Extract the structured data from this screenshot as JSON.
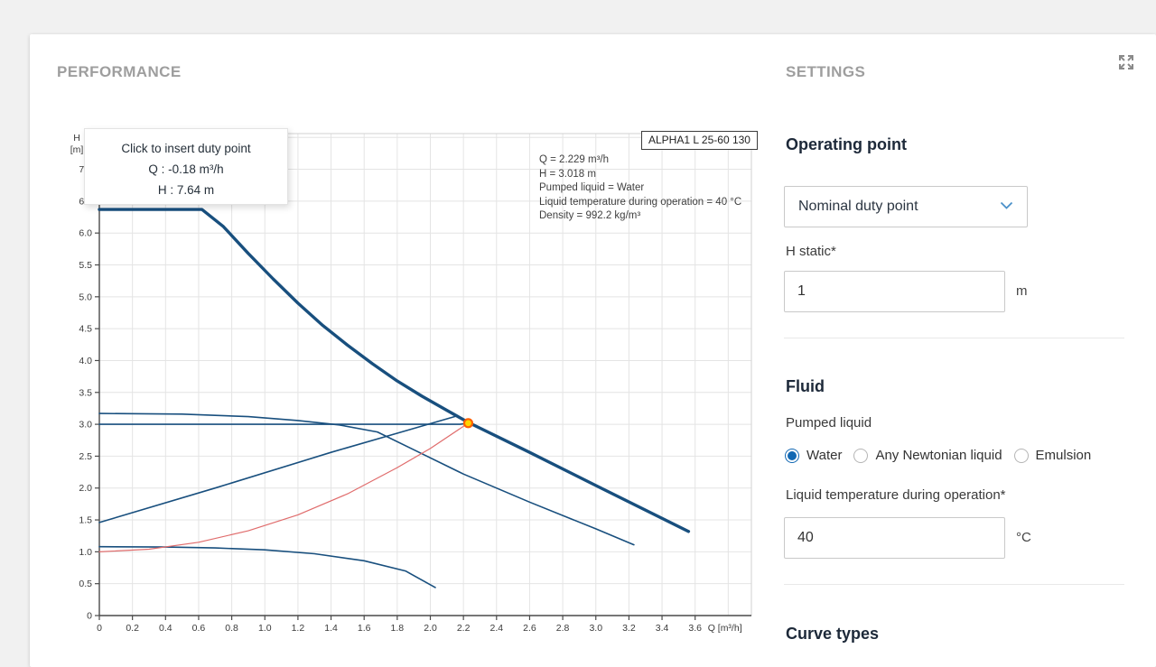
{
  "header": {
    "performance_title": "PERFORMANCE",
    "settings_title": "SETTINGS"
  },
  "chart_data": {
    "type": "line",
    "pump_label": "ALPHA1 L 25-60 130",
    "xlabel": "Q [m³/h]",
    "ylabel_line1": "H",
    "ylabel_line2": "[m]",
    "xlim": [
      0,
      3.94
    ],
    "ylim": [
      0,
      7.56
    ],
    "x_tick_step": 0.2,
    "y_tick_step": 0.5,
    "grid": true,
    "legend_position": "none",
    "x_tick_labels": [
      "0",
      "0.2",
      "0.4",
      "0.6",
      "0.8",
      "1.0",
      "1.2",
      "1.4",
      "1.6",
      "1.8",
      "2.0",
      "2.2",
      "2.4",
      "2.6",
      "2.8",
      "3.0",
      "3.2",
      "3.4",
      "3.6"
    ],
    "y_tick_labels": [
      "0",
      "0.5",
      "1.0",
      "1.5",
      "2.0",
      "2.5",
      "3.0",
      "3.5",
      "4.0",
      "4.5",
      "5.0",
      "5.5",
      "6.0",
      "6.5",
      "7.0"
    ],
    "colors": {
      "curve": "#184f7e",
      "system_curve": "#e06c6c",
      "grid": "#e4e4e4",
      "border": "#d2d2d2",
      "axis": "#4a4a4a",
      "tick_text": "#3a3a3a",
      "marker_fill": "#ffd400",
      "marker_stroke": "#ff5f00"
    },
    "series": [
      {
        "name": "max-speed-curve",
        "width": 3.4,
        "points": [
          [
            0,
            6.37
          ],
          [
            0.62,
            6.37
          ],
          [
            0.75,
            6.1
          ],
          [
            0.9,
            5.68
          ],
          [
            1.05,
            5.28
          ],
          [
            1.2,
            4.9
          ],
          [
            1.35,
            4.55
          ],
          [
            1.5,
            4.24
          ],
          [
            1.65,
            3.95
          ],
          [
            1.8,
            3.68
          ],
          [
            1.95,
            3.44
          ],
          [
            2.1,
            3.22
          ],
          [
            2.229,
            3.03
          ],
          [
            2.6,
            2.56
          ],
          [
            3.0,
            2.04
          ],
          [
            3.56,
            1.32
          ]
        ]
      },
      {
        "name": "speed-curve-2",
        "width": 1.6,
        "points": [
          [
            0,
            3.17
          ],
          [
            0.5,
            3.16
          ],
          [
            0.9,
            3.12
          ],
          [
            1.2,
            3.06
          ],
          [
            1.45,
            2.99
          ],
          [
            1.68,
            2.88
          ],
          [
            1.9,
            2.6
          ],
          [
            2.2,
            2.22
          ],
          [
            2.6,
            1.78
          ],
          [
            3.0,
            1.36
          ],
          [
            3.23,
            1.11
          ]
        ]
      },
      {
        "name": "constant-pressure-curve",
        "width": 1.6,
        "points": [
          [
            0,
            3.0
          ],
          [
            2.18,
            3.0
          ],
          [
            2.229,
            3.018
          ]
        ]
      },
      {
        "name": "proportional-pressure-curve",
        "width": 1.6,
        "points": [
          [
            0,
            1.46
          ],
          [
            0.7,
            2.0
          ],
          [
            1.4,
            2.56
          ],
          [
            1.8,
            2.86
          ],
          [
            2.16,
            3.13
          ]
        ]
      },
      {
        "name": "speed-curve-1",
        "width": 1.6,
        "points": [
          [
            0,
            1.08
          ],
          [
            0.4,
            1.075
          ],
          [
            0.7,
            1.06
          ],
          [
            1.0,
            1.03
          ],
          [
            1.3,
            0.97
          ],
          [
            1.6,
            0.86
          ],
          [
            1.85,
            0.7
          ],
          [
            2.03,
            0.44
          ]
        ]
      },
      {
        "name": "system-curve",
        "width": 1.2,
        "color": "#e06c6c",
        "points": [
          [
            0,
            1.0
          ],
          [
            0.3,
            1.04
          ],
          [
            0.6,
            1.15
          ],
          [
            0.9,
            1.33
          ],
          [
            1.2,
            1.58
          ],
          [
            1.5,
            1.91
          ],
          [
            1.8,
            2.32
          ],
          [
            2.0,
            2.62
          ],
          [
            2.229,
            3.018
          ]
        ]
      }
    ],
    "duty_point": {
      "q": 2.229,
      "h": 3.018
    },
    "annotation_lines": {
      "0": "Q = 2.229 m³/h",
      "1": "H = 3.018 m",
      "2": "Pumped liquid = Water",
      "3": "Liquid temperature during operation = 40 °C",
      "4": "Density = 992.2 kg/m³"
    },
    "tooltip_lines": {
      "0": "Click to insert duty point",
      "1": "Q : -0.18 m³/h",
      "2": "H : 7.64 m"
    }
  },
  "settings": {
    "operating_point": {
      "heading": "Operating point",
      "dropdown_value": "Nominal duty point",
      "h_static_label": "H static*",
      "h_static_value": "1",
      "h_static_unit": "m"
    },
    "fluid": {
      "heading": "Fluid",
      "pumped_liquid_label": "Pumped liquid",
      "options": {
        "0": {
          "label": "Water",
          "selected": true
        },
        "1": {
          "label": "Any Newtonian liquid",
          "selected": false
        },
        "2": {
          "label": "Emulsion",
          "selected": false
        }
      },
      "temperature_label": "Liquid temperature during operation*",
      "temperature_value": "40",
      "temperature_unit": "°C"
    },
    "curve_types_heading": "Curve types"
  }
}
